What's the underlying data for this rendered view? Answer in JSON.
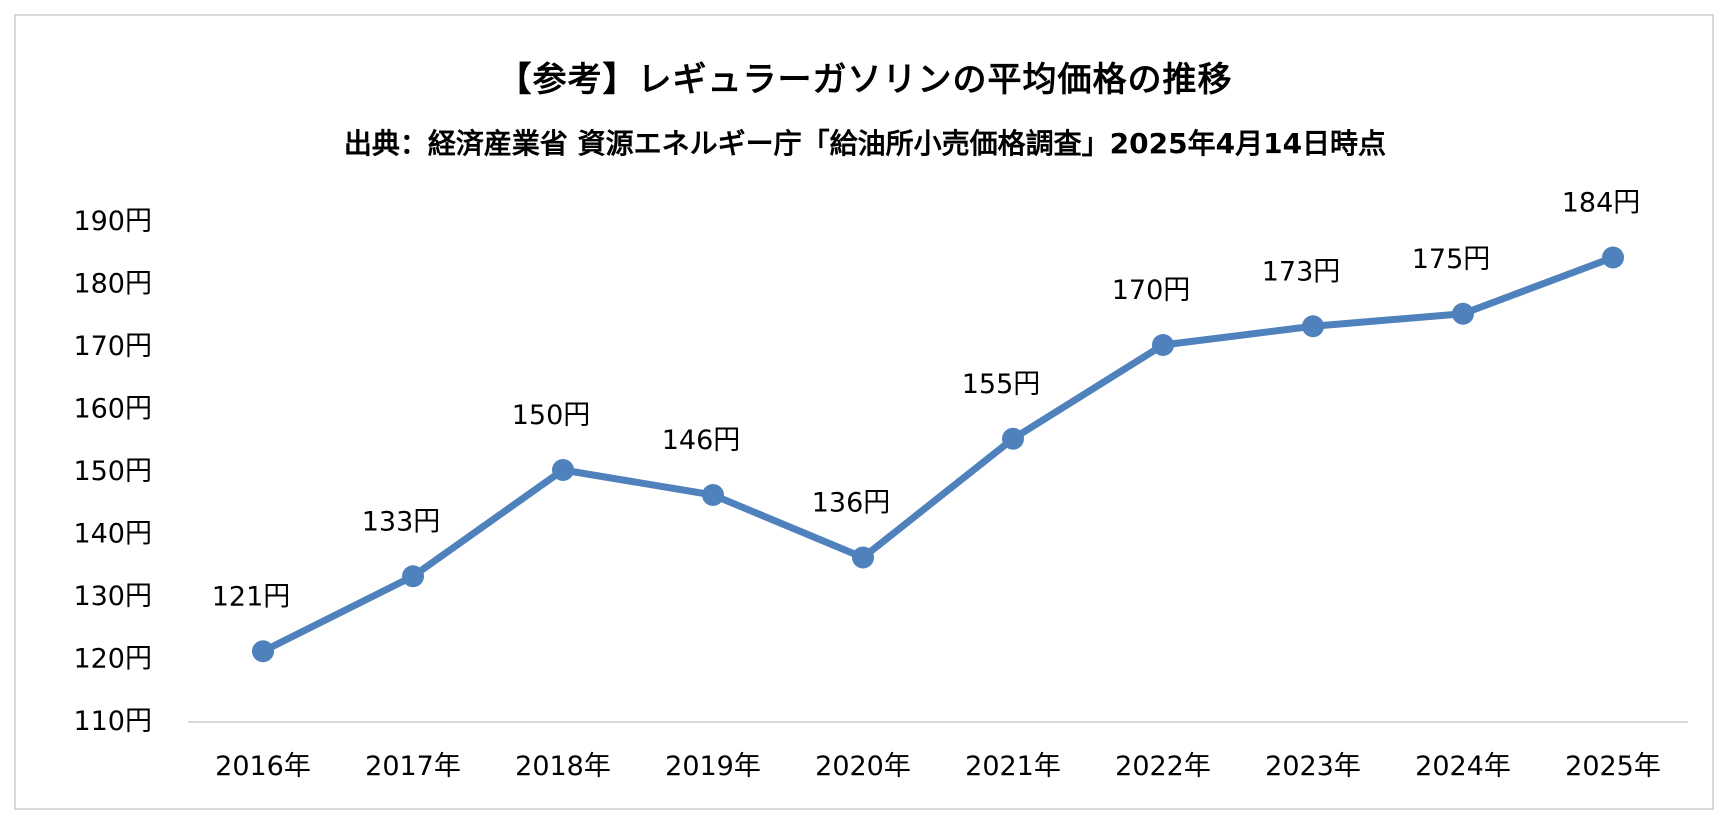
{
  "chart_data": {
    "type": "line",
    "title": "【参考】レギュラーガソリンの平均価格の推移",
    "subtitle": "出典：経済産業省 資源エネルギー庁「給油所小売価格調査」2025年4月14日時点",
    "xlabel": "",
    "ylabel": "",
    "categories": [
      "2016年",
      "2017年",
      "2018年",
      "2019年",
      "2020年",
      "2021年",
      "2022年",
      "2023年",
      "2024年",
      "2025年"
    ],
    "series": [
      {
        "values": [
          121,
          133,
          150,
          146,
          136,
          155,
          170,
          173,
          175,
          184
        ],
        "data_labels": [
          "121円",
          "133円",
          "150円",
          "146円",
          "136円",
          "155円",
          "170円",
          "173円",
          "175円",
          "184円"
        ],
        "color": "#4F81BD"
      }
    ],
    "yticks": [
      110,
      120,
      130,
      140,
      150,
      160,
      170,
      180,
      190
    ],
    "ytick_labels": [
      "110円",
      "120円",
      "130円",
      "140円",
      "150円",
      "160円",
      "170円",
      "180円",
      "190円"
    ],
    "ylim": [
      110,
      190
    ],
    "grid": false,
    "legend": "none",
    "axis_color": "#d9d9d9"
  }
}
